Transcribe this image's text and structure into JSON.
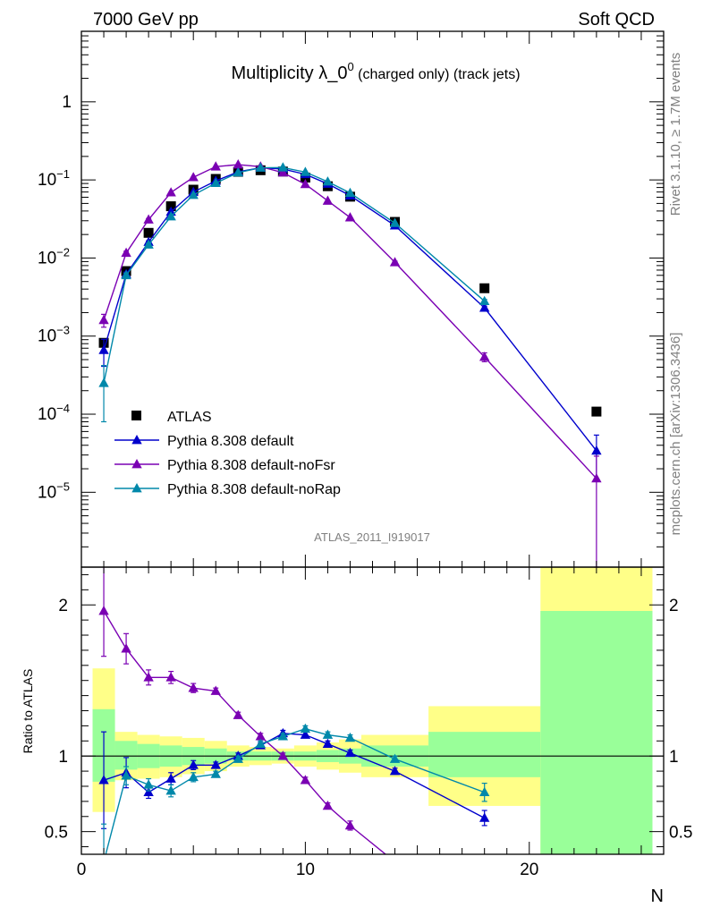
{
  "header": {
    "left": "7000 GeV pp",
    "right": "Soft QCD"
  },
  "side_labels": {
    "rivet": "Rivet 3.1.10, ≥ 1.7M events",
    "mcplots": "mcplots.cern.ch [arXiv:1306.3436]"
  },
  "analysis_tag": "ATLAS_2011_I919017",
  "colors": {
    "atlas": "#000000",
    "default": "#0000cc",
    "noFsr": "#7a00b3",
    "noRap": "#0088aa",
    "band_yellow": "#ffff88",
    "band_green": "#99ff99"
  },
  "chart_data": [
    {
      "type": "scatter",
      "title_main": "Multiplicity λ_0",
      "title_sup": "0",
      "title_rest": " (charged only) (track jets)",
      "xlabel": "N",
      "ylabel": "",
      "xlim": [
        0,
        26
      ],
      "ylim": [
        1.1e-06,
        8
      ],
      "yscale": "log",
      "ytick_labels": [
        {
          "v": 1,
          "base": "1",
          "exp": ""
        },
        {
          "v": 0.1,
          "base": "10",
          "exp": "−1"
        },
        {
          "v": 0.01,
          "base": "10",
          "exp": "−2"
        },
        {
          "v": 0.001,
          "base": "10",
          "exp": "−3"
        },
        {
          "v": 0.0001,
          "base": "10",
          "exp": "−4"
        },
        {
          "v": 1e-05,
          "base": "10",
          "exp": "−5"
        }
      ],
      "legend_position": "bottom-left",
      "series": [
        {
          "name": "ATLAS",
          "key": "atlas",
          "marker": "square",
          "x": [
            1,
            2,
            3,
            4,
            5,
            6,
            7,
            8,
            9,
            10,
            11,
            12,
            14,
            18,
            23
          ],
          "y": [
            0.00082,
            0.0068,
            0.021,
            0.046,
            0.075,
            0.103,
            0.127,
            0.133,
            0.128,
            0.107,
            0.083,
            0.061,
            0.029,
            0.0041,
            0.000108
          ]
        },
        {
          "name": "Pythia 8.308 default",
          "key": "default",
          "marker": "triangle",
          "x": [
            1,
            2,
            3,
            4,
            5,
            6,
            7,
            8,
            9,
            10,
            11,
            12,
            14,
            18,
            23
          ],
          "y": [
            0.00066,
            0.0062,
            0.016,
            0.039,
            0.07,
            0.097,
            0.127,
            0.143,
            0.138,
            0.118,
            0.089,
            0.063,
            0.026,
            0.0023,
            3.4e-05
          ],
          "err": [
            0.00025,
            0.0004,
            0.0006,
            0.001,
            0.0015,
            0.002,
            0.002,
            0.002,
            0.002,
            0.002,
            0.0015,
            0.0012,
            0.0006,
            0.00012,
            2e-05
          ]
        },
        {
          "name": "Pythia 8.308 default-noFsr",
          "key": "noFsr",
          "marker": "triangle",
          "x": [
            1,
            2,
            3,
            4,
            5,
            6,
            7,
            8,
            9,
            10,
            11,
            12,
            14,
            18,
            23
          ],
          "y": [
            0.0016,
            0.0116,
            0.031,
            0.069,
            0.108,
            0.148,
            0.157,
            0.148,
            0.124,
            0.088,
            0.054,
            0.033,
            0.0088,
            0.00054,
            1.5e-05
          ],
          "err": [
            0.0003,
            0.0006,
            0.001,
            0.0015,
            0.002,
            0.002,
            0.002,
            0.002,
            0.002,
            0.0015,
            0.001,
            0.0008,
            0.0003,
            7e-05,
            1.4e-05
          ]
        },
        {
          "name": "Pythia 8.308 default-noRap",
          "key": "noRap",
          "marker": "triangle",
          "x": [
            1,
            2,
            3,
            4,
            5,
            6,
            7,
            8,
            9,
            10,
            11,
            12,
            14,
            18
          ],
          "y": [
            0.00025,
            0.006,
            0.0148,
            0.034,
            0.064,
            0.091,
            0.124,
            0.143,
            0.144,
            0.126,
            0.095,
            0.068,
            0.028,
            0.0028
          ],
          "err": [
            0.00017,
            0.0004,
            0.0006,
            0.001,
            0.0015,
            0.002,
            0.002,
            0.002,
            0.002,
            0.002,
            0.0015,
            0.0012,
            0.0006,
            0.00015
          ]
        }
      ]
    },
    {
      "type": "line",
      "ylabel": "Ratio to ATLAS",
      "xlabel": "N",
      "xlim": [
        0,
        26
      ],
      "ylim": [
        0.35,
        2.25
      ],
      "x_tick_labels": [
        "0",
        "10",
        "20"
      ],
      "y_tick_labels": [
        "0.5",
        "1",
        "2"
      ],
      "reference_line": 1,
      "bands": [
        {
          "x0": 0.5,
          "x1": 1.5,
          "yellow": [
            0.63,
            1.58
          ],
          "green": [
            0.83,
            1.31
          ]
        },
        {
          "x0": 1.5,
          "x1": 2.5,
          "yellow": [
            0.84,
            1.16
          ],
          "green": [
            0.91,
            1.1
          ]
        },
        {
          "x0": 2.5,
          "x1": 3.5,
          "yellow": [
            0.85,
            1.14
          ],
          "green": [
            0.92,
            1.08
          ]
        },
        {
          "x0": 3.5,
          "x1": 4.5,
          "yellow": [
            0.86,
            1.13
          ],
          "green": [
            0.93,
            1.07
          ]
        },
        {
          "x0": 4.5,
          "x1": 5.5,
          "yellow": [
            0.88,
            1.12
          ],
          "green": [
            0.94,
            1.06
          ]
        },
        {
          "x0": 5.5,
          "x1": 6.5,
          "yellow": [
            0.9,
            1.1
          ],
          "green": [
            0.95,
            1.05
          ]
        },
        {
          "x0": 6.5,
          "x1": 7.5,
          "yellow": [
            0.93,
            1.07
          ],
          "green": [
            0.97,
            1.03
          ]
        },
        {
          "x0": 7.5,
          "x1": 8.5,
          "yellow": [
            0.94,
            1.06
          ],
          "green": [
            0.97,
            1.03
          ]
        },
        {
          "x0": 8.5,
          "x1": 9.5,
          "yellow": [
            0.95,
            1.05
          ],
          "green": [
            0.97,
            1.03
          ]
        },
        {
          "x0": 9.5,
          "x1": 10.5,
          "yellow": [
            0.93,
            1.07
          ],
          "green": [
            0.97,
            1.03
          ]
        },
        {
          "x0": 10.5,
          "x1": 11.5,
          "yellow": [
            0.91,
            1.09
          ],
          "green": [
            0.96,
            1.04
          ]
        },
        {
          "x0": 11.5,
          "x1": 12.5,
          "yellow": [
            0.89,
            1.11
          ],
          "green": [
            0.95,
            1.05
          ]
        },
        {
          "x0": 12.5,
          "x1": 15.5,
          "yellow": [
            0.86,
            1.14
          ],
          "green": [
            0.93,
            1.07
          ]
        },
        {
          "x0": 15.5,
          "x1": 20.5,
          "yellow": [
            0.67,
            1.33
          ],
          "green": [
            0.86,
            1.16
          ]
        },
        {
          "x0": 20.5,
          "x1": 25.5,
          "yellow": [
            0.3,
            2.3
          ],
          "green": [
            0.3,
            1.96
          ]
        }
      ],
      "series": [
        {
          "name": "Pythia 8.308 default",
          "key": "default",
          "x": [
            1,
            2,
            3,
            4,
            5,
            6,
            7,
            8,
            9,
            10,
            11,
            12,
            14,
            18
          ],
          "y": [
            0.84,
            0.89,
            0.76,
            0.85,
            0.94,
            0.94,
            1.0,
            1.07,
            1.15,
            1.14,
            1.08,
            1.02,
            0.9,
            0.59
          ],
          "err": [
            0.32,
            0.1,
            0.04,
            0.04,
            0.03,
            0.02,
            0.02,
            0.02,
            0.02,
            0.02,
            0.02,
            0.02,
            0.02,
            0.05
          ]
        },
        {
          "name": "Pythia 8.308 default-noFsr",
          "key": "noFsr",
          "x": [
            1,
            2,
            3,
            4,
            5,
            6,
            7,
            8,
            9,
            10,
            11,
            12,
            14
          ],
          "y": [
            1.96,
            1.71,
            1.52,
            1.52,
            1.45,
            1.43,
            1.27,
            1.13,
            1.0,
            0.84,
            0.67,
            0.54,
            0.3
          ],
          "err": [
            0.3,
            0.1,
            0.05,
            0.04,
            0.03,
            0.02,
            0.02,
            0.02,
            0.02,
            0.02,
            0.02,
            0.03,
            0.02
          ]
        },
        {
          "name": "Pythia 8.308 default-noRap",
          "key": "noRap",
          "x": [
            1,
            2,
            3,
            4,
            5,
            6,
            7,
            8,
            9,
            10,
            11,
            12,
            14,
            18
          ],
          "y": [
            0.3,
            0.87,
            0.81,
            0.77,
            0.86,
            0.88,
            0.98,
            1.08,
            1.13,
            1.18,
            1.14,
            1.12,
            0.98,
            0.76
          ],
          "err": [
            0.25,
            0.06,
            0.04,
            0.04,
            0.03,
            0.02,
            0.02,
            0.02,
            0.02,
            0.02,
            0.02,
            0.02,
            0.02,
            0.06
          ]
        }
      ]
    }
  ]
}
